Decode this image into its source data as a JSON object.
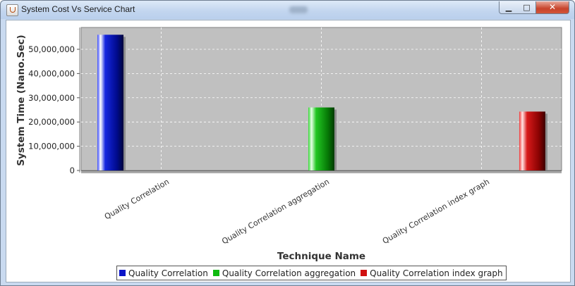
{
  "window": {
    "title": "System Cost Vs Service Chart",
    "icon": "java-cup-icon",
    "controls": {
      "minimize": "▁",
      "maximize": "□",
      "close": "✕"
    }
  },
  "chart_data": {
    "type": "bar",
    "xlabel": "Technique Name",
    "ylabel": "System Time (Nano.Sec)",
    "ylim": [
      0,
      59000000
    ],
    "yticks": [
      0,
      10000000,
      20000000,
      30000000,
      40000000,
      50000000
    ],
    "ytick_labels": [
      "0",
      "10,000,000",
      "20,000,000",
      "30,000,000",
      "40,000,000",
      "50,000,000"
    ],
    "categories": [
      "Quality Correlation",
      "Quality Correlation aggregation",
      "Quality Correlation index graph"
    ],
    "series": [
      {
        "name": "Quality Correlation",
        "color": "#0a14c8",
        "values": [
          56000000,
          null,
          null
        ]
      },
      {
        "name": "Quality Correlation aggregation",
        "color": "#0fba10",
        "values": [
          null,
          26000000,
          null
        ]
      },
      {
        "name": "Quality Correlation index graph",
        "color": "#d01010",
        "values": [
          null,
          null,
          24300000
        ]
      }
    ],
    "plot_background": "#c0c0c0",
    "grid": true,
    "legend_position": "bottom"
  }
}
